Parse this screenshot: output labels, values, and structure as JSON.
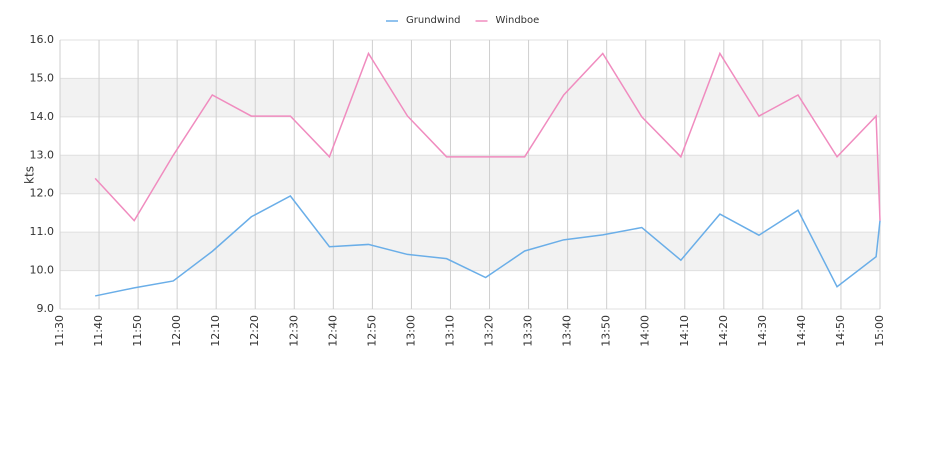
{
  "chart_data": {
    "type": "line",
    "y_label": "kts",
    "x": [
      "11:39",
      "11:49",
      "11:59",
      "12:09",
      "12:19",
      "12:29",
      "12:39",
      "12:49",
      "12:59",
      "13:09",
      "13:19",
      "13:29",
      "13:39",
      "13:49",
      "13:59",
      "14:09",
      "14:19",
      "14:29",
      "14:39",
      "14:49",
      "14:59",
      "15:00"
    ],
    "series": [
      {
        "name": "Grundwind",
        "color": "#6aaee8",
        "values": [
          9.34,
          9.55,
          9.73,
          10.5,
          11.4,
          11.94,
          10.62,
          10.68,
          10.42,
          10.31,
          9.82,
          10.51,
          10.8,
          10.93,
          11.12,
          10.27,
          11.47,
          10.92,
          11.57,
          9.58,
          10.36,
          11.3
        ]
      },
      {
        "name": "Windboe",
        "color": "#f08cbf",
        "values": [
          12.4,
          11.3,
          13.0,
          14.57,
          14.02,
          14.02,
          12.96,
          15.65,
          14.02,
          12.96,
          12.96,
          12.96,
          14.57,
          15.65,
          14.0,
          12.96,
          15.65,
          14.02,
          14.57,
          12.96,
          14.02,
          11.3
        ]
      }
    ],
    "xlim": [
      "11:30",
      "15:00"
    ],
    "xticks": [
      "11:30",
      "11:40",
      "11:50",
      "12:00",
      "12:10",
      "12:20",
      "12:30",
      "12:40",
      "12:50",
      "13:00",
      "13:10",
      "13:20",
      "13:30",
      "13:40",
      "13:50",
      "14:00",
      "14:10",
      "14:20",
      "14:30",
      "14:40",
      "14:50",
      "15:00"
    ],
    "ylim": [
      9,
      16
    ],
    "yticks": [
      {
        "value": 9,
        "label": "9.0"
      },
      {
        "value": 10,
        "label": "10.0"
      },
      {
        "value": 11,
        "label": "11.0"
      },
      {
        "value": 12,
        "label": "12.0"
      },
      {
        "value": 13,
        "label": "13.0"
      },
      {
        "value": 14,
        "label": "14.0"
      },
      {
        "value": 15,
        "label": "15.0"
      },
      {
        "value": 16,
        "label": "16.0"
      }
    ],
    "grid": true,
    "band_color": "#f2f2f2",
    "legend": "top"
  }
}
